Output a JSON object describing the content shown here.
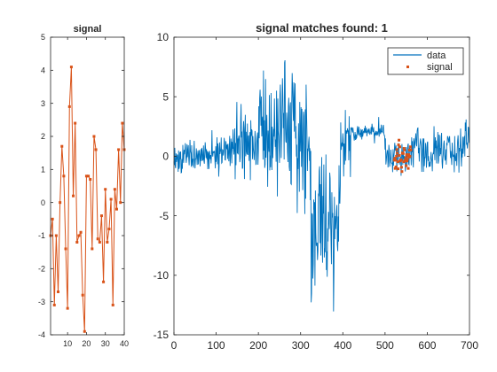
{
  "chart_data": [
    {
      "type": "line",
      "title": "signal",
      "xlabel": "",
      "ylabel": "",
      "xlim": [
        1,
        40
      ],
      "ylim": [
        -4,
        5
      ],
      "xticks": [
        10,
        20,
        30,
        40
      ],
      "yticks": [
        -4,
        -3,
        -2,
        -1,
        0,
        1,
        2,
        3,
        4,
        5
      ],
      "grid": false,
      "series": [
        {
          "color": "#D95319",
          "marker": "square",
          "x": [
            1,
            2,
            3,
            4,
            5,
            6,
            7,
            8,
            9,
            10,
            11,
            12,
            13,
            14,
            15,
            16,
            17,
            18,
            19,
            20,
            21,
            22,
            23,
            24,
            25,
            26,
            27,
            28,
            29,
            30,
            31,
            32,
            33,
            34,
            35,
            36,
            37,
            38,
            39,
            40
          ],
          "values": [
            -1.0,
            -0.5,
            -3.1,
            -1.0,
            -2.7,
            0.0,
            1.7,
            0.8,
            -1.4,
            -3.2,
            2.9,
            4.1,
            0.2,
            2.4,
            -1.2,
            -1.0,
            -0.9,
            -2.8,
            -3.9,
            0.8,
            0.8,
            0.7,
            -1.4,
            2.0,
            1.6,
            -1.1,
            -1.2,
            -0.4,
            -2.4,
            0.4,
            -1.2,
            -0.8,
            0.1,
            -3.1,
            0.4,
            -0.2,
            1.6,
            0.0,
            2.4,
            1.6
          ]
        }
      ]
    },
    {
      "type": "line",
      "title": "signal matches found: 1",
      "xlabel": "",
      "ylabel": "",
      "xlim": [
        0,
        700
      ],
      "ylim": [
        -15,
        10
      ],
      "xticks": [
        0,
        100,
        200,
        300,
        400,
        500,
        600,
        700
      ],
      "yticks": [
        -15,
        -10,
        -5,
        0,
        5,
        10
      ],
      "grid": false,
      "legend": {
        "position": "top-right",
        "entries": [
          "data",
          "signal"
        ]
      },
      "series": [
        {
          "name": "data",
          "color": "#0072BD",
          "style": "line",
          "segments": [
            {
              "x_range": [
                0,
                80
              ],
              "mean": 0.0,
              "amplitude": 0.9
            },
            {
              "x_range": [
                80,
                140
              ],
              "mean": 0.5,
              "amplitude": 1.2
            },
            {
              "x_range": [
                140,
                200
              ],
              "mean": 1.0,
              "amplitude": 2.5
            },
            {
              "x_range": [
                200,
                240
              ],
              "mean": 2.5,
              "amplitude": 3.5
            },
            {
              "x_range": [
                240,
                290
              ],
              "mean": 3.0,
              "amplitude": 4.0
            },
            {
              "x_range": [
                290,
                325
              ],
              "mean": 0.5,
              "amplitude": 3.5
            },
            {
              "x_range": [
                325,
                395
              ],
              "mean": -5.5,
              "amplitude": 4.5
            },
            {
              "x_range": [
                395,
                420
              ],
              "mean": 1.5,
              "amplitude": 2.0
            },
            {
              "x_range": [
                420,
                500
              ],
              "mean": 2.0,
              "amplitude": 0.5
            },
            {
              "x_range": [
                500,
                560
              ],
              "mean": 0.0,
              "amplitude": 1.0
            },
            {
              "x_range": [
                560,
                700
              ],
              "mean": 0.5,
              "amplitude": 1.5
            }
          ]
        },
        {
          "name": "signal",
          "color": "#D95319",
          "style": "markers",
          "x_start": 522,
          "x_step": 1,
          "values": [
            -1.0,
            -0.5,
            -3.1,
            -1.0,
            -2.7,
            0.0,
            1.7,
            0.8,
            -1.4,
            -3.2,
            2.9,
            4.1,
            0.2,
            2.4,
            -1.2,
            -1.0,
            -0.9,
            -2.8,
            -3.9,
            0.8,
            0.8,
            0.7,
            -1.4,
            2.0,
            1.6,
            -1.1,
            -1.2,
            -0.4,
            -2.4,
            0.4,
            -1.2,
            -0.8,
            0.1,
            -3.1,
            0.4,
            -0.2,
            1.6,
            0.0,
            2.4,
            1.6
          ],
          "value_scale": 0.33
        }
      ]
    }
  ]
}
